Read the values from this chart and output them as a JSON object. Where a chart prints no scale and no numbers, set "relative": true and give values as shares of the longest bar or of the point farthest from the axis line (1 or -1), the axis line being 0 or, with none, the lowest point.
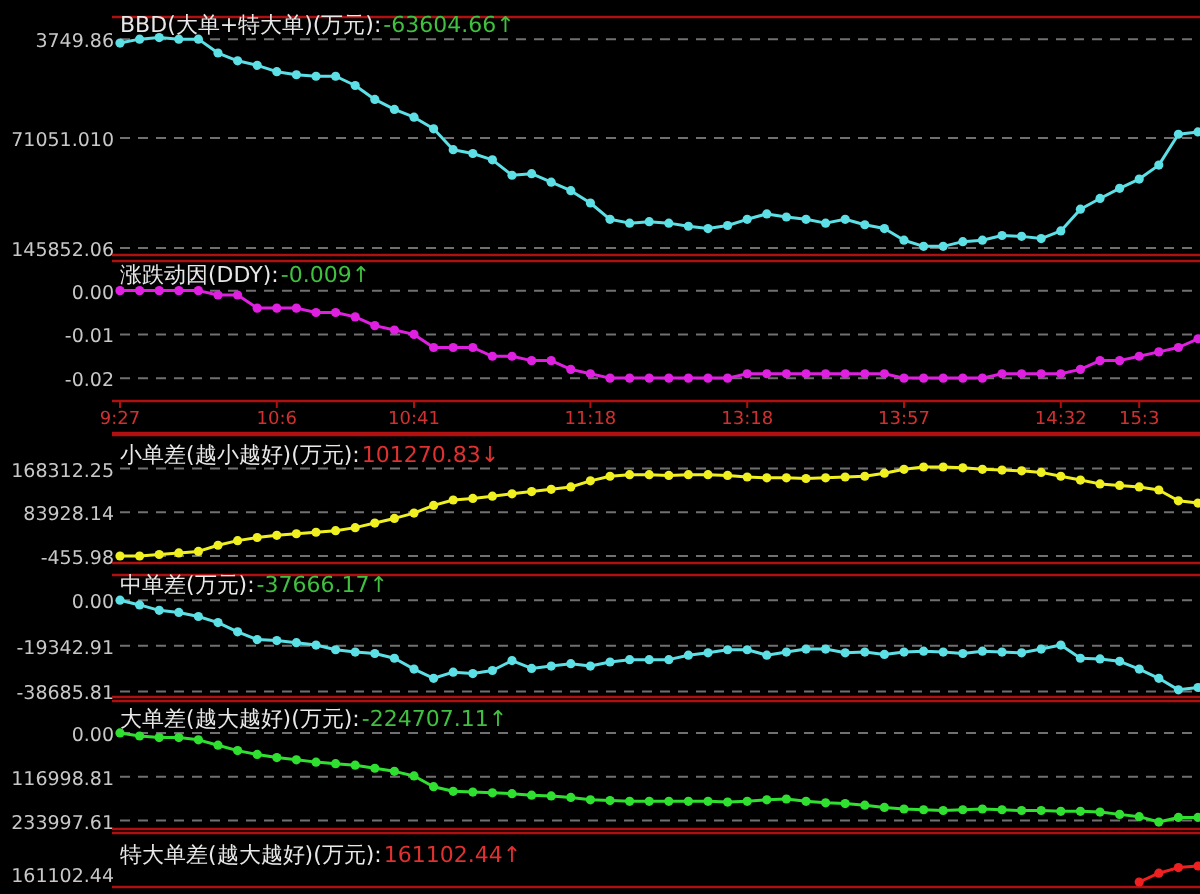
{
  "chart_data": [
    {
      "type": "line",
      "title": "BBD(大单+特大单)(万元):",
      "subtitle": "-63604.66↑",
      "categories": [
        null,
        null,
        null,
        null,
        null,
        null,
        null,
        null,
        null,
        null,
        null,
        null,
        null,
        null,
        null,
        null,
        null,
        null,
        null,
        null,
        null,
        null,
        null,
        null,
        null,
        null,
        null,
        null,
        null,
        null,
        null,
        null,
        null,
        null,
        null,
        null,
        null,
        null,
        null,
        null,
        null,
        null,
        null,
        null,
        null,
        null,
        null,
        null,
        null,
        null,
        null,
        null,
        null,
        null,
        null,
        null
      ],
      "series": [
        {
          "color": "#5ce0e6",
          "values": [
            -6400,
            -3750,
            -2700,
            -3750,
            -3750,
            -13200,
            -18500,
            -21600,
            -25900,
            -28000,
            -29000,
            -29000,
            -35300,
            -44800,
            -51600,
            -56900,
            -64800,
            -79000,
            -81600,
            -85900,
            -96400,
            -95300,
            -101100,
            -106900,
            -115300,
            -126400,
            -129000,
            -128000,
            -129000,
            -131100,
            -132700,
            -130600,
            -126400,
            -122700,
            -124800,
            -126400,
            -129000,
            -126400,
            -130100,
            -132700,
            -140600,
            -144800,
            -144800,
            -141600,
            -140600,
            -137400,
            -138000,
            -139500,
            -134300,
            -119500,
            -112200,
            -105300,
            -99000,
            -89500,
            -68500,
            -66900
          ]
        }
      ],
      "ylim": [
        -150000,
        12000
      ],
      "yticks": [
        {
          "value": -3749.86,
          "label": "3749.86"
        },
        {
          "value": -71051.01,
          "label": "71051.010"
        },
        {
          "value": -145852.06,
          "label": "145852.06"
        }
      ],
      "grid": "y",
      "marker": "circle",
      "line_style": "solid",
      "tick_labels": "y"
    },
    {
      "type": "line",
      "title": "涨跌动因(DDY):",
      "subtitle": "-0.009↑",
      "categories": [
        "9:27",
        null,
        null,
        null,
        null,
        null,
        null,
        null,
        "10:6",
        null,
        null,
        null,
        null,
        null,
        null,
        "10:41",
        null,
        null,
        null,
        null,
        null,
        null,
        null,
        null,
        "11:18",
        null,
        null,
        null,
        null,
        null,
        null,
        null,
        "13:18",
        null,
        null,
        null,
        null,
        null,
        null,
        null,
        "13:57",
        null,
        null,
        null,
        null,
        null,
        null,
        null,
        "14:32",
        null,
        null,
        null,
        "15:3",
        null,
        null,
        null
      ],
      "series": [
        {
          "color": "#e020e0",
          "values": [
            0,
            0,
            0,
            0,
            0,
            -0.001,
            -0.001,
            -0.004,
            -0.004,
            -0.004,
            -0.005,
            -0.005,
            -0.006,
            -0.008,
            -0.009,
            -0.01,
            -0.013,
            -0.013,
            -0.013,
            -0.015,
            -0.015,
            -0.016,
            -0.016,
            -0.018,
            -0.019,
            -0.02,
            -0.02,
            -0.02,
            -0.02,
            -0.02,
            -0.02,
            -0.02,
            -0.019,
            -0.019,
            -0.019,
            -0.019,
            -0.019,
            -0.019,
            -0.019,
            -0.019,
            -0.02,
            -0.02,
            -0.02,
            -0.02,
            -0.02,
            -0.019,
            -0.019,
            -0.019,
            -0.019,
            -0.018,
            -0.016,
            -0.016,
            -0.015,
            -0.014,
            -0.013,
            -0.011
          ]
        }
      ],
      "ylim": [
        -0.025,
        0.007
      ],
      "yticks": [
        {
          "value": 0,
          "label": "0.00"
        },
        -0.01,
        -0.02
      ],
      "grid": "y",
      "marker": "circle",
      "line_style": "solid"
    },
    {
      "type": "line",
      "title": "小单差(越小越好)(万元):",
      "subtitle": "101270.83↓",
      "categories": [
        null,
        null,
        null,
        null,
        null,
        null,
        null,
        null,
        null,
        null,
        null,
        null,
        null,
        null,
        null,
        null,
        null,
        null,
        null,
        null,
        null,
        null,
        null,
        null,
        null,
        null,
        null,
        null,
        null,
        null,
        null,
        null,
        null,
        null,
        null,
        null,
        null,
        null,
        null,
        null,
        null,
        null,
        null,
        null,
        null,
        null,
        null,
        null,
        null,
        null,
        null,
        null,
        null,
        null,
        null,
        null
      ],
      "series": [
        {
          "color": "#f0f020",
          "values": [
            -456,
            -456,
            2500,
            5500,
            8400,
            20300,
            29200,
            35300,
            39500,
            42500,
            45400,
            48400,
            54300,
            63200,
            72100,
            82400,
            97200,
            107600,
            110600,
            115000,
            119500,
            123900,
            128300,
            132800,
            144600,
            153500,
            156500,
            156500,
            155000,
            156500,
            156500,
            155000,
            152000,
            150500,
            150500,
            149100,
            150500,
            152000,
            153500,
            159400,
            166800,
            171300,
            171300,
            169800,
            166800,
            165400,
            163900,
            160900,
            153500,
            146100,
            138700,
            135700,
            132800,
            126900,
            106100,
            101700
          ]
        }
      ],
      "ylim": [
        -12000,
        235000
      ],
      "yticks": [
        168312.25,
        83928.14,
        -455.98
      ],
      "grid": "y",
      "marker": "circle",
      "line_style": "solid",
      "tick_labels": "y"
    },
    {
      "type": "line",
      "title": "中单差(万元):",
      "subtitle": "-37666.17↑",
      "categories": [
        null,
        null,
        null,
        null,
        null,
        null,
        null,
        null,
        null,
        null,
        null,
        null,
        null,
        null,
        null,
        null,
        null,
        null,
        null,
        null,
        null,
        null,
        null,
        null,
        null,
        null,
        null,
        null,
        null,
        null,
        null,
        null,
        null,
        null,
        null,
        null,
        null,
        null,
        null,
        null,
        null,
        null,
        null,
        null,
        null,
        null,
        null,
        null,
        null,
        null,
        null,
        null,
        null,
        null,
        null,
        null
      ],
      "series": [
        {
          "color": "#5ce0e6",
          "values": [
            0,
            -2000,
            -4300,
            -5200,
            -6900,
            -9500,
            -13400,
            -16700,
            -17100,
            -18000,
            -19000,
            -21000,
            -22000,
            -22600,
            -24600,
            -29200,
            -33100,
            -30500,
            -31100,
            -29800,
            -25600,
            -28900,
            -27900,
            -26900,
            -27900,
            -26200,
            -25200,
            -25200,
            -25200,
            -23300,
            -22300,
            -21000,
            -21000,
            -23300,
            -22000,
            -20700,
            -20700,
            -22300,
            -22000,
            -23000,
            -22000,
            -21600,
            -22000,
            -22600,
            -21600,
            -22000,
            -22300,
            -20700,
            -19000,
            -24600,
            -24900,
            -25900,
            -29200,
            -33100,
            -38000,
            -37000
          ]
        }
      ],
      "ylim": [
        -40600,
        11100
      ],
      "yticks": [
        {
          "value": 0,
          "label": "0.00"
        },
        -19342.91,
        -38685.81
      ],
      "grid": "y",
      "marker": "circle",
      "line_style": "solid",
      "tick_labels": "y"
    },
    {
      "type": "line",
      "title": "大单差(越大越好)(万元):",
      "subtitle": "-224707.11↑",
      "categories": [
        null,
        null,
        null,
        null,
        null,
        null,
        null,
        null,
        null,
        null,
        null,
        null,
        null,
        null,
        null,
        null,
        null,
        null,
        null,
        null,
        null,
        null,
        null,
        null,
        null,
        null,
        null,
        null,
        null,
        null,
        null,
        null,
        null,
        null,
        null,
        null,
        null,
        null,
        null,
        null,
        null,
        null,
        null,
        null,
        null,
        null,
        null,
        null,
        null,
        null,
        null,
        null,
        null,
        null,
        null,
        null
      ],
      "series": [
        {
          "color": "#30e030",
          "values": [
            0,
            -8200,
            -12300,
            -12300,
            -18500,
            -32800,
            -47200,
            -57500,
            -65700,
            -71800,
            -78000,
            -82100,
            -86200,
            -94400,
            -102600,
            -114900,
            -143700,
            -156000,
            -158100,
            -160100,
            -162200,
            -166300,
            -168300,
            -172400,
            -178600,
            -180600,
            -182700,
            -182700,
            -182700,
            -182700,
            -182700,
            -184700,
            -182700,
            -178600,
            -176500,
            -182700,
            -186800,
            -188800,
            -192900,
            -199100,
            -203200,
            -205300,
            -207300,
            -205300,
            -203200,
            -205300,
            -207300,
            -207300,
            -209400,
            -209400,
            -211400,
            -217600,
            -223700,
            -238100,
            -225800,
            -225800
          ]
        }
      ],
      "ylim": [
        -254000,
        88000
      ],
      "yticks": [
        {
          "value": 0,
          "label": "0.00"
        },
        {
          "value": -116998.81,
          "label": "116998.81"
        },
        {
          "value": -233997.61,
          "label": "233997.61"
        }
      ],
      "grid": "y",
      "marker": "circle",
      "line_style": "solid",
      "tick_labels": "y"
    },
    {
      "type": "line",
      "title": "特大单差(越大越好)(万元):",
      "subtitle": "161102.44↑",
      "relative": true,
      "annotations": [
        "161102.44"
      ],
      "categories": [
        null,
        null,
        null,
        null,
        null,
        null,
        null,
        null,
        null,
        null,
        null,
        null,
        null,
        null,
        null,
        null,
        null,
        null,
        null,
        null,
        null,
        null,
        null,
        null,
        null,
        null,
        null,
        null,
        null,
        null,
        null,
        null,
        null,
        null,
        null,
        null,
        null,
        null,
        null,
        null,
        null,
        null,
        null,
        null,
        null,
        null,
        null,
        null,
        null,
        null,
        null,
        null,
        null,
        null,
        null,
        null
      ],
      "series": [
        {
          "color": "#f02020",
          "values": [
            null,
            null,
            null,
            null,
            null,
            null,
            null,
            null,
            null,
            null,
            null,
            null,
            null,
            null,
            null,
            null,
            null,
            null,
            null,
            null,
            null,
            null,
            null,
            null,
            null,
            null,
            null,
            null,
            null,
            null,
            null,
            null,
            null,
            null,
            null,
            null,
            null,
            null,
            null,
            null,
            null,
            null,
            null,
            null,
            null,
            null,
            null,
            null,
            null,
            null,
            null,
            null,
            0,
            0.55,
            0.9,
            1
          ]
        }
      ],
      "marker": "circle",
      "line_style": "solid",
      "tick_labels": false
    }
  ]
}
